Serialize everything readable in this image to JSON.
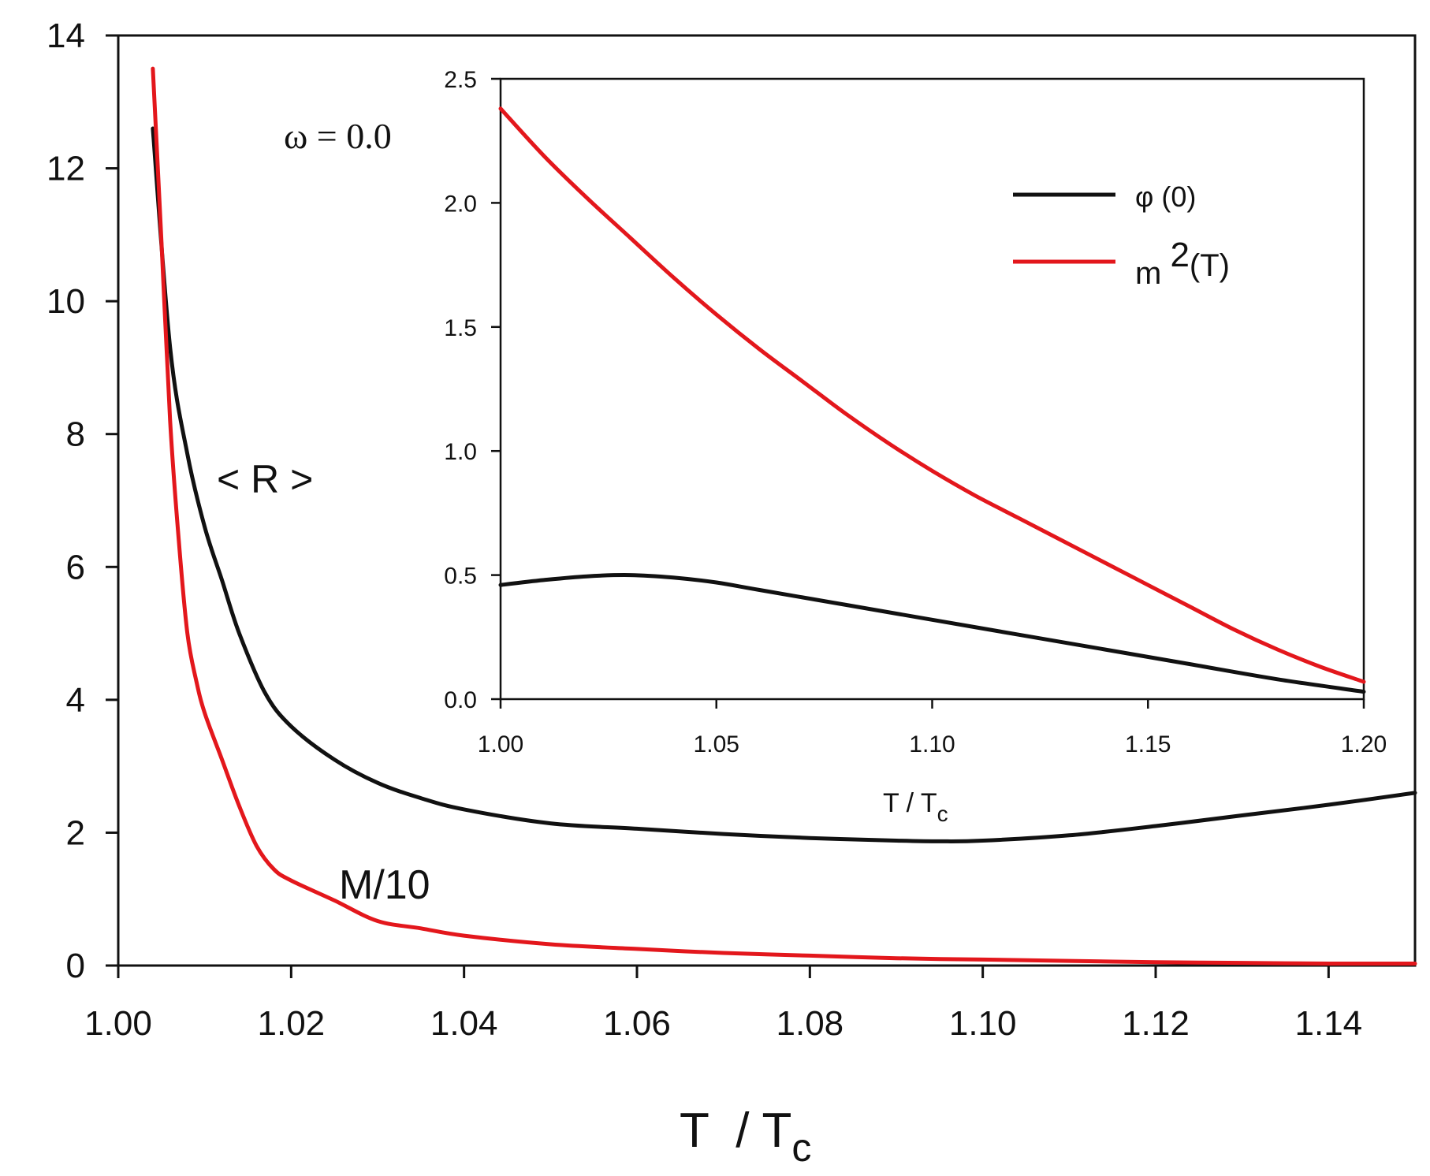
{
  "chart_data": [
    {
      "type": "line",
      "title": "",
      "xlabel": "T  / T",
      "xlabel_sub": "c",
      "ylabel": "",
      "xlim": [
        1.0,
        1.15
      ],
      "ylim": [
        0,
        14
      ],
      "xticks": [
        "1.00",
        "1.02",
        "1.04",
        "1.06",
        "1.08",
        "1.10",
        "1.12",
        "1.14"
      ],
      "yticks": [
        "0",
        "2",
        "4",
        "6",
        "8",
        "10",
        "12",
        "14"
      ],
      "annotations": {
        "omega": "ω = 0.0",
        "r_label": "< R >",
        "m_label": "M/10"
      },
      "series": [
        {
          "name": "< R >",
          "color": "#111111",
          "x": [
            1.004,
            1.006,
            1.008,
            1.01,
            1.012,
            1.014,
            1.017,
            1.02,
            1.025,
            1.03,
            1.035,
            1.04,
            1.05,
            1.06,
            1.07,
            1.08,
            1.09,
            1.095,
            1.1,
            1.11,
            1.12,
            1.13,
            1.14,
            1.15
          ],
          "y": [
            12.6,
            9.3,
            7.7,
            6.6,
            5.8,
            5.0,
            4.1,
            3.6,
            3.1,
            2.75,
            2.52,
            2.35,
            2.14,
            2.06,
            1.98,
            1.92,
            1.88,
            1.87,
            1.88,
            1.96,
            2.1,
            2.26,
            2.42,
            2.6
          ]
        },
        {
          "name": "M/10",
          "color": "#e3171c",
          "x": [
            1.004,
            1.005,
            1.006,
            1.007,
            1.008,
            1.009,
            1.01,
            1.012,
            1.014,
            1.016,
            1.018,
            1.02,
            1.025,
            1.03,
            1.035,
            1.04,
            1.05,
            1.06,
            1.07,
            1.08,
            1.09,
            1.1,
            1.11,
            1.12,
            1.13,
            1.14,
            1.15
          ],
          "y": [
            13.5,
            10.9,
            8.2,
            6.4,
            5.0,
            4.3,
            3.8,
            3.1,
            2.4,
            1.8,
            1.45,
            1.28,
            0.98,
            0.67,
            0.56,
            0.45,
            0.32,
            0.25,
            0.19,
            0.15,
            0.11,
            0.09,
            0.07,
            0.05,
            0.04,
            0.03,
            0.03
          ]
        }
      ]
    },
    {
      "type": "line",
      "title": "",
      "xlabel": "T / T",
      "xlabel_sub": "c",
      "ylabel": "",
      "xlim": [
        1.0,
        1.2
      ],
      "ylim": [
        0,
        2.5
      ],
      "xticks": [
        "1.00",
        "1.05",
        "1.10",
        "1.15",
        "1.20"
      ],
      "yticks": [
        "0.0",
        "0.5",
        "1.0",
        "1.5",
        "2.0",
        "2.5"
      ],
      "legend": {
        "position": "top-right",
        "entries": [
          "φ (0)",
          "m 2(T)"
        ]
      },
      "legend_parts": {
        "phi": "φ (0)",
        "m_base": "m ",
        "m_sup": "2",
        "m_rest": "(T)"
      },
      "series": [
        {
          "name": "φ (0)",
          "color": "#111111",
          "x": [
            1.0,
            1.01,
            1.02,
            1.03,
            1.04,
            1.05,
            1.06,
            1.08,
            1.1,
            1.12,
            1.14,
            1.16,
            1.18,
            1.2
          ],
          "y": [
            0.46,
            0.48,
            0.495,
            0.5,
            0.49,
            0.47,
            0.44,
            0.38,
            0.32,
            0.26,
            0.2,
            0.14,
            0.08,
            0.03
          ]
        },
        {
          "name": "m 2(T)",
          "color": "#e3171c",
          "x": [
            1.0,
            1.01,
            1.02,
            1.03,
            1.04,
            1.05,
            1.06,
            1.07,
            1.08,
            1.09,
            1.1,
            1.11,
            1.12,
            1.13,
            1.14,
            1.15,
            1.16,
            1.17,
            1.18,
            1.19,
            1.2
          ],
          "y": [
            2.38,
            2.19,
            2.02,
            1.86,
            1.7,
            1.55,
            1.41,
            1.28,
            1.15,
            1.03,
            0.92,
            0.82,
            0.73,
            0.64,
            0.55,
            0.46,
            0.37,
            0.28,
            0.2,
            0.13,
            0.07
          ]
        }
      ]
    }
  ]
}
